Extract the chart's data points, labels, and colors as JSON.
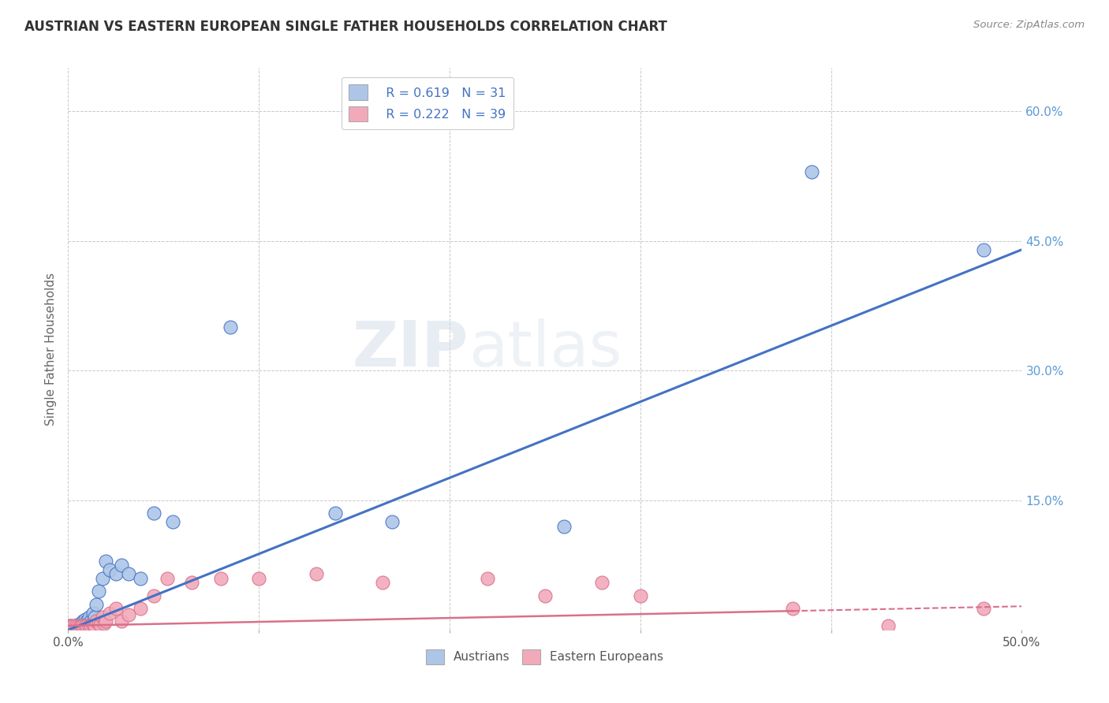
{
  "title": "AUSTRIAN VS EASTERN EUROPEAN SINGLE FATHER HOUSEHOLDS CORRELATION CHART",
  "source": "Source: ZipAtlas.com",
  "ylabel": "Single Father Households",
  "xlim": [
    0,
    0.5
  ],
  "ylim": [
    0,
    0.65
  ],
  "xticks": [
    0.0,
    0.1,
    0.2,
    0.3,
    0.4,
    0.5
  ],
  "xtick_labels": [
    "0.0%",
    "",
    "",
    "",
    "",
    "50.0%"
  ],
  "yticks_right": [
    0.0,
    0.15,
    0.3,
    0.45,
    0.6
  ],
  "ytick_right_labels": [
    "",
    "15.0%",
    "30.0%",
    "45.0%",
    "60.0%"
  ],
  "right_axis_color": "#5b9bd5",
  "background_color": "#ffffff",
  "grid_color": "#c8c8c8",
  "watermark_text": "ZIPatlas",
  "legend_R1": "R = 0.619",
  "legend_N1": "N = 31",
  "legend_R2": "R = 0.222",
  "legend_N2": "N = 39",
  "austrians_color": "#adc6e8",
  "eastern_color": "#f2aabb",
  "line1_color": "#4472c4",
  "line2_color": "#d9708a",
  "line1_slope": 0.88,
  "line1_intercept": 0.0,
  "line2_slope": 0.045,
  "line2_intercept": 0.005,
  "line2_solid_end": 0.38,
  "austrians_x": [
    0.001,
    0.002,
    0.003,
    0.004,
    0.005,
    0.006,
    0.007,
    0.008,
    0.009,
    0.01,
    0.011,
    0.012,
    0.013,
    0.014,
    0.015,
    0.016,
    0.018,
    0.02,
    0.022,
    0.025,
    0.028,
    0.032,
    0.038,
    0.045,
    0.055,
    0.085,
    0.14,
    0.17,
    0.26,
    0.39,
    0.48
  ],
  "austrians_y": [
    0.005,
    0.004,
    0.003,
    0.005,
    0.006,
    0.007,
    0.008,
    0.01,
    0.012,
    0.01,
    0.015,
    0.01,
    0.02,
    0.015,
    0.03,
    0.045,
    0.06,
    0.08,
    0.07,
    0.065,
    0.075,
    0.065,
    0.06,
    0.135,
    0.125,
    0.35,
    0.135,
    0.125,
    0.12,
    0.53,
    0.44
  ],
  "eastern_x": [
    0.001,
    0.002,
    0.003,
    0.004,
    0.005,
    0.006,
    0.007,
    0.008,
    0.009,
    0.01,
    0.011,
    0.012,
    0.013,
    0.014,
    0.015,
    0.016,
    0.017,
    0.018,
    0.019,
    0.02,
    0.022,
    0.025,
    0.028,
    0.032,
    0.038,
    0.045,
    0.052,
    0.065,
    0.08,
    0.1,
    0.13,
    0.165,
    0.22,
    0.28,
    0.38,
    0.43,
    0.48,
    0.25,
    0.3
  ],
  "eastern_y": [
    0.005,
    0.005,
    0.005,
    0.005,
    0.004,
    0.004,
    0.005,
    0.005,
    0.005,
    0.005,
    0.005,
    0.005,
    0.006,
    0.005,
    0.01,
    0.008,
    0.006,
    0.015,
    0.008,
    0.01,
    0.02,
    0.025,
    0.01,
    0.018,
    0.025,
    0.04,
    0.06,
    0.055,
    0.06,
    0.06,
    0.065,
    0.055,
    0.06,
    0.055,
    0.025,
    0.005,
    0.025,
    0.04,
    0.04
  ]
}
